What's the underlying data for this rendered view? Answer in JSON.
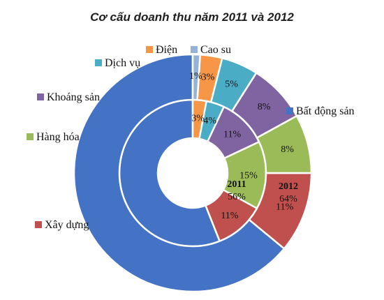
{
  "chart_data": {
    "type": "pie",
    "subtype": "doughnut",
    "title": "Cơ cấu doanh thu năm 2011 và 2012",
    "categories": [
      "Bất động sản",
      "Xây dựng",
      "Hàng hóa",
      "Khoáng sản",
      "Dịch vụ",
      "Điện",
      "Cao su"
    ],
    "colors": [
      "#4472C4",
      "#C0504D",
      "#9BBB59",
      "#8064A2",
      "#4BACC6",
      "#F79646",
      "#95B3D7"
    ],
    "series": [
      {
        "name": "2011",
        "values": [
          56,
          11,
          15,
          11,
          4,
          3,
          0
        ],
        "labels": [
          "",
          "11%",
          "15%",
          "11%",
          "4%",
          "3%",
          ""
        ]
      },
      {
        "name": "2012",
        "values": [
          64,
          11,
          8,
          8,
          5,
          3,
          1
        ],
        "labels": [
          "",
          "11%",
          "8%",
          "8%",
          "5%",
          "3%",
          "1%"
        ]
      }
    ],
    "center_labels": {
      "inner": {
        "name": "2011",
        "value": "56%"
      },
      "outer": {
        "name": "2012",
        "value": "64%"
      }
    },
    "legend": [
      {
        "label": "Bất động sản",
        "color": "#4472C4"
      },
      {
        "label": "Xây dựng",
        "color": "#C0504D"
      },
      {
        "label": "Hàng hóa",
        "color": "#9BBB59"
      },
      {
        "label": "Khoáng sản",
        "color": "#8064A2"
      },
      {
        "label": "Dịch vụ",
        "color": "#4BACC6"
      },
      {
        "label": "Điện",
        "color": "#F79646"
      },
      {
        "label": "Cao su",
        "color": "#95B3D7"
      }
    ],
    "legend_placement": "around"
  }
}
